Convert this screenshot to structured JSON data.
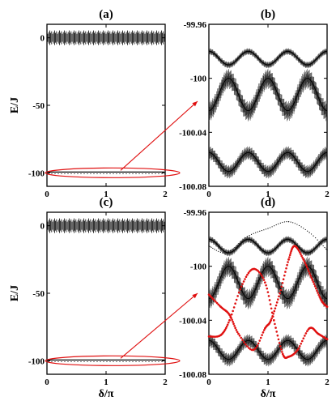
{
  "chart_data": [
    {
      "panel": "(a)",
      "type": "line",
      "xlabel": "",
      "ylabel": "E/J",
      "xlim": [
        0,
        2
      ],
      "ylim": [
        -110,
        10
      ],
      "xticks": [
        "0",
        "1",
        "2"
      ],
      "yticks": [
        "0",
        "-50",
        "-100"
      ],
      "series": [
        {
          "values_y": [
            0
          ],
          "kind": "dense-band",
          "y_range": [
            -2,
            2
          ]
        },
        {
          "values_y": [
            -100
          ],
          "kind": "dense-band",
          "y_range": [
            -100.07,
            -99.97
          ]
        }
      ],
      "annotation": "ellipse around E/J ≈ -100 band, arrow to panel (b)"
    },
    {
      "panel": "(b)",
      "type": "line",
      "xlabel": "",
      "ylabel": "",
      "xlim": [
        0,
        2
      ],
      "ylim": [
        -100.08,
        -99.96
      ],
      "xticks": [
        "0",
        "1",
        "2"
      ],
      "yticks": [
        "-99.96",
        "-100",
        "-100.04",
        "-100.08"
      ],
      "series": [
        {
          "kind": "oscillating-band",
          "offset": -99.985,
          "amplitude": 0.005,
          "phase_shift": 0,
          "width": 0.002
        },
        {
          "kind": "oscillating-band",
          "offset": -100.012,
          "amplitude": 0.012,
          "phase_shift": 1,
          "width": 0.006
        },
        {
          "kind": "oscillating-band",
          "offset": -100.062,
          "amplitude": 0.007,
          "phase_shift": 0,
          "width": 0.004
        }
      ]
    },
    {
      "panel": "(c)",
      "type": "line",
      "xlabel": "δ/π",
      "ylabel": "E/J",
      "xlim": [
        0,
        2
      ],
      "ylim": [
        -110,
        10
      ],
      "xticks": [
        "0",
        "1",
        "2"
      ],
      "yticks": [
        "0",
        "-50",
        "-100"
      ],
      "series": [
        {
          "values_y": [
            0
          ],
          "kind": "dense-band",
          "y_range": [
            -2,
            2
          ]
        },
        {
          "values_y": [
            -100
          ],
          "kind": "dense-band",
          "y_range": [
            -100.07,
            -99.97
          ]
        }
      ],
      "annotation": "ellipse around E/J ≈ -100 band, arrow to panel (d)"
    },
    {
      "panel": "(d)",
      "type": "line",
      "xlabel": "δ/π",
      "ylabel": "",
      "xlim": [
        0,
        2
      ],
      "ylim": [
        -100.08,
        -99.96
      ],
      "xticks": [
        "0",
        "1",
        "2"
      ],
      "yticks": [
        "-99.96",
        "-100",
        "-100.04",
        "-100.08"
      ],
      "series": [
        {
          "kind": "oscillating-band",
          "offset": -99.985,
          "amplitude": 0.005,
          "phase_shift": 0,
          "width": 0.002
        },
        {
          "kind": "oscillating-band",
          "offset": -100.012,
          "amplitude": 0.012,
          "phase_shift": 1,
          "width": 0.006
        },
        {
          "kind": "oscillating-band",
          "offset": -100.062,
          "amplitude": 0.007,
          "phase_shift": 0,
          "width": 0.004
        },
        {
          "kind": "dotted-curve",
          "color": "#000000",
          "points": [
            [
              0,
              -99.985
            ],
            [
              0.3,
              -99.99
            ],
            [
              0.65,
              -99.978
            ],
            [
              1.0,
              -99.972
            ],
            [
              1.35,
              -99.967
            ],
            [
              1.7,
              -99.975
            ],
            [
              2.0,
              -99.988
            ]
          ]
        },
        {
          "kind": "red-dotted-curve",
          "color": "#e01010",
          "points": [
            [
              0,
              -100.052
            ],
            [
              0.2,
              -100.051
            ],
            [
              0.35,
              -100.04
            ],
            [
              0.55,
              -100.015
            ],
            [
              0.75,
              -100.002
            ],
            [
              0.95,
              -100.012
            ],
            [
              1.1,
              -100.04
            ],
            [
              1.25,
              -100.065
            ],
            [
              1.35,
              -100.067
            ],
            [
              1.5,
              -100.062
            ],
            [
              1.7,
              -100.046
            ],
            [
              1.85,
              -100.05
            ],
            [
              2.0,
              -100.054
            ]
          ]
        },
        {
          "kind": "red-dotted-curve",
          "color": "#e01010",
          "points": [
            [
              0,
              -100.021
            ],
            [
              0.2,
              -100.03
            ],
            [
              0.35,
              -100.036
            ],
            [
              0.5,
              -100.05
            ],
            [
              0.75,
              -100.062
            ],
            [
              0.95,
              -100.046
            ],
            [
              1.05,
              -100.04
            ],
            [
              1.2,
              -100.02
            ],
            [
              1.35,
              -99.995
            ],
            [
              1.45,
              -99.985
            ],
            [
              1.6,
              -99.995
            ],
            [
              1.75,
              -100.01
            ],
            [
              1.9,
              -100.025
            ],
            [
              2.0,
              -100.03
            ]
          ]
        }
      ]
    }
  ],
  "colors": {
    "red": "#e01010",
    "black": "#000000"
  }
}
